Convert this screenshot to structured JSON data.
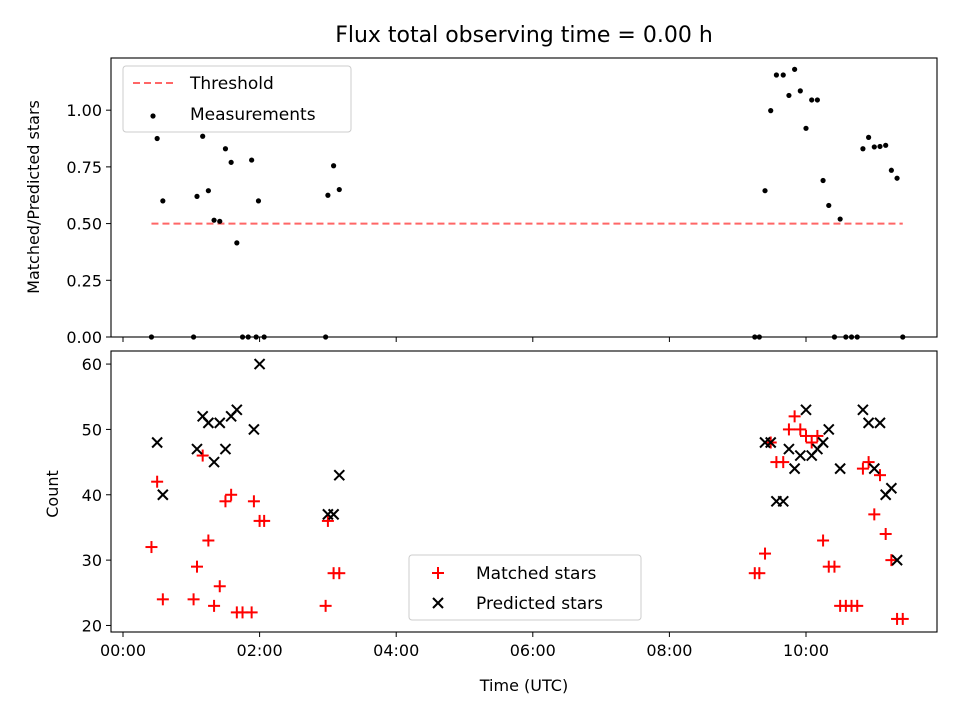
{
  "chart_data": [
    {
      "type": "scatter",
      "title": "Flux total observing time = 0.00 h",
      "xlabel": "",
      "ylabel": "Matched/Predicted stars",
      "ylim": [
        0,
        1.23
      ],
      "xlim": [
        "00:00",
        "12:00"
      ],
      "yticks": [
        "0.00",
        "0.25",
        "0.50",
        "0.75",
        "1.00"
      ],
      "grid": false,
      "legend_position": "top-left",
      "threshold": {
        "name": "Threshold",
        "color": "#ff6666",
        "style": "dashed",
        "value": 0.5,
        "x_range": [
          "00:25",
          "11:25"
        ]
      },
      "series": [
        {
          "name": "Measurements",
          "color": "#000000",
          "marker": "dot",
          "points": [
            [
              "00:25",
              0.0
            ],
            [
              "00:30",
              0.875
            ],
            [
              "00:35",
              0.6
            ],
            [
              "01:02",
              0.0
            ],
            [
              "01:05",
              0.62
            ],
            [
              "01:10",
              0.885
            ],
            [
              "01:15",
              0.645
            ],
            [
              "01:20",
              0.515
            ],
            [
              "01:25",
              0.51
            ],
            [
              "01:30",
              0.83
            ],
            [
              "01:35",
              0.77
            ],
            [
              "01:40",
              0.415
            ],
            [
              "01:45",
              0.0
            ],
            [
              "01:50",
              0.0
            ],
            [
              "01:53",
              0.78
            ],
            [
              "01:57",
              0.0
            ],
            [
              "01:59",
              0.6
            ],
            [
              "02:04",
              0.0
            ],
            [
              "02:58",
              0.0
            ],
            [
              "03:00",
              0.625
            ],
            [
              "03:05",
              0.755
            ],
            [
              "03:10",
              0.65
            ],
            [
              "09:15",
              0.0
            ],
            [
              "09:19",
              0.0
            ],
            [
              "09:24",
              0.645
            ],
            [
              "09:29",
              0.998
            ],
            [
              "09:34",
              1.155
            ],
            [
              "09:40",
              1.155
            ],
            [
              "09:45",
              1.065
            ],
            [
              "09:50",
              1.18
            ],
            [
              "09:55",
              1.085
            ],
            [
              "10:00",
              0.92
            ],
            [
              "10:05",
              1.045
            ],
            [
              "10:10",
              1.045
            ],
            [
              "10:15",
              0.69
            ],
            [
              "10:20",
              0.58
            ],
            [
              "10:25",
              0.0
            ],
            [
              "10:30",
              0.52
            ],
            [
              "10:35",
              0.0
            ],
            [
              "10:40",
              0.0
            ],
            [
              "10:45",
              0.0
            ],
            [
              "10:50",
              0.83
            ],
            [
              "10:55",
              0.88
            ],
            [
              "11:00",
              0.838
            ],
            [
              "11:05",
              0.84
            ],
            [
              "11:10",
              0.845
            ],
            [
              "11:15",
              0.735
            ],
            [
              "11:20",
              0.7
            ],
            [
              "11:25",
              0.0
            ]
          ]
        }
      ]
    },
    {
      "type": "scatter",
      "title": "",
      "xlabel": "Time (UTC)",
      "ylabel": "Count",
      "ylim": [
        19,
        62
      ],
      "xlim": [
        "00:00",
        "12:00"
      ],
      "xticks": [
        "00:00",
        "02:00",
        "04:00",
        "06:00",
        "08:00",
        "10:00"
      ],
      "yticks": [
        "20",
        "30",
        "40",
        "50",
        "60"
      ],
      "grid": false,
      "legend_position": "bottom-center",
      "series": [
        {
          "name": "Matched stars",
          "color": "#ff0000",
          "marker": "plus",
          "points": [
            [
              "00:25",
              32
            ],
            [
              "00:30",
              42
            ],
            [
              "00:35",
              24
            ],
            [
              "01:02",
              24
            ],
            [
              "01:05",
              29
            ],
            [
              "01:10",
              46
            ],
            [
              "01:15",
              33
            ],
            [
              "01:20",
              23
            ],
            [
              "01:25",
              26
            ],
            [
              "01:30",
              39
            ],
            [
              "01:35",
              40
            ],
            [
              "01:40",
              22
            ],
            [
              "01:45",
              22
            ],
            [
              "01:53",
              22
            ],
            [
              "01:55",
              39
            ],
            [
              "02:00",
              36
            ],
            [
              "02:04",
              36
            ],
            [
              "02:58",
              23
            ],
            [
              "03:00",
              36
            ],
            [
              "03:05",
              28
            ],
            [
              "03:10",
              28
            ],
            [
              "09:15",
              28
            ],
            [
              "09:19",
              28
            ],
            [
              "09:24",
              31
            ],
            [
              "09:29",
              48
            ],
            [
              "09:34",
              45
            ],
            [
              "09:40",
              45
            ],
            [
              "09:45",
              50
            ],
            [
              "09:50",
              52
            ],
            [
              "09:55",
              50
            ],
            [
              "10:00",
              49
            ],
            [
              "10:05",
              48
            ],
            [
              "10:10",
              49
            ],
            [
              "10:15",
              33
            ],
            [
              "10:20",
              29
            ],
            [
              "10:25",
              29
            ],
            [
              "10:30",
              23
            ],
            [
              "10:35",
              23
            ],
            [
              "10:40",
              23
            ],
            [
              "10:45",
              23
            ],
            [
              "10:50",
              44
            ],
            [
              "10:55",
              45
            ],
            [
              "11:00",
              37
            ],
            [
              "11:05",
              43
            ],
            [
              "11:10",
              34
            ],
            [
              "11:15",
              30
            ],
            [
              "11:20",
              21
            ],
            [
              "11:25",
              21
            ]
          ]
        },
        {
          "name": "Predicted stars",
          "color": "#000000",
          "marker": "x",
          "points": [
            [
              "00:30",
              48
            ],
            [
              "00:35",
              40
            ],
            [
              "01:05",
              47
            ],
            [
              "01:10",
              52
            ],
            [
              "01:15",
              51
            ],
            [
              "01:20",
              45
            ],
            [
              "01:25",
              51
            ],
            [
              "01:30",
              47
            ],
            [
              "01:35",
              52
            ],
            [
              "01:40",
              53
            ],
            [
              "01:55",
              50
            ],
            [
              "02:00",
              60
            ],
            [
              "03:00",
              37
            ],
            [
              "03:05",
              37
            ],
            [
              "03:10",
              43
            ],
            [
              "09:24",
              48
            ],
            [
              "09:29",
              48
            ],
            [
              "09:34",
              39
            ],
            [
              "09:40",
              39
            ],
            [
              "09:45",
              47
            ],
            [
              "09:50",
              44
            ],
            [
              "09:55",
              46
            ],
            [
              "10:00",
              53
            ],
            [
              "10:05",
              46
            ],
            [
              "10:10",
              47
            ],
            [
              "10:15",
              48
            ],
            [
              "10:20",
              50
            ],
            [
              "10:30",
              44
            ],
            [
              "10:50",
              53
            ],
            [
              "10:55",
              51
            ],
            [
              "11:00",
              44
            ],
            [
              "11:05",
              51
            ],
            [
              "11:10",
              40
            ],
            [
              "11:15",
              41
            ],
            [
              "11:20",
              30
            ]
          ]
        }
      ]
    }
  ]
}
